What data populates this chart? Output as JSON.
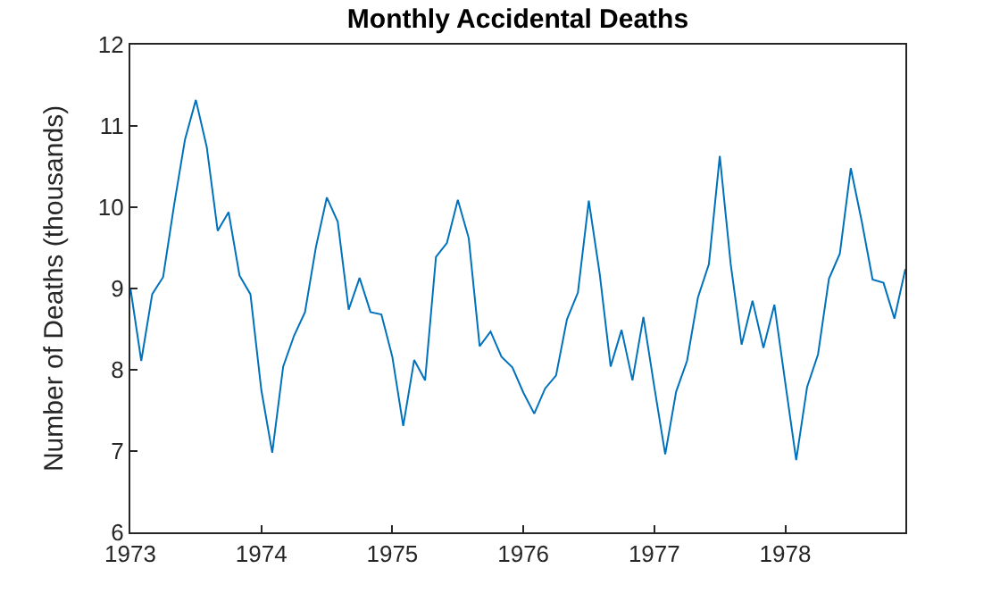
{
  "chart_data": {
    "type": "line",
    "title": "Monthly Accidental Deaths",
    "ylabel": "Number of Deaths (thousands)",
    "x": [
      1973,
      1973.0833,
      1973.1667,
      1973.25,
      1973.3333,
      1973.4167,
      1973.5,
      1973.5833,
      1973.6667,
      1973.75,
      1973.8333,
      1973.9167,
      1974,
      1974.0833,
      1974.1667,
      1974.25,
      1974.3333,
      1974.4167,
      1974.5,
      1974.5833,
      1974.6667,
      1974.75,
      1974.8333,
      1974.9167,
      1975,
      1975.0833,
      1975.1667,
      1975.25,
      1975.3333,
      1975.4167,
      1975.5,
      1975.5833,
      1975.6667,
      1975.75,
      1975.8333,
      1975.9167,
      1976,
      1976.0833,
      1976.1667,
      1976.25,
      1976.3333,
      1976.4167,
      1976.5,
      1976.5833,
      1976.6667,
      1976.75,
      1976.8333,
      1976.9167,
      1977,
      1977.0833,
      1977.1667,
      1977.25,
      1977.3333,
      1977.4167,
      1977.5,
      1977.5833,
      1977.6667,
      1977.75,
      1977.8333,
      1977.9167,
      1978,
      1978.0833,
      1978.1667,
      1978.25,
      1978.3333,
      1978.4167,
      1978.5,
      1978.5833,
      1978.6667,
      1978.75,
      1978.8333,
      1978.9167
    ],
    "series": [
      {
        "color": "#0072bd",
        "values": [
          9.01,
          8.11,
          8.93,
          9.14,
          10.02,
          10.83,
          11.32,
          10.74,
          9.71,
          9.94,
          9.16,
          8.93,
          7.75,
          6.98,
          8.04,
          8.42,
          8.71,
          9.51,
          10.12,
          9.82,
          8.74,
          9.13,
          8.71,
          8.68,
          8.16,
          7.31,
          8.12,
          7.87,
          9.39,
          9.56,
          10.09,
          9.62,
          8.29,
          8.47,
          8.16,
          8.03,
          7.72,
          7.46,
          7.77,
          7.93,
          8.62,
          8.95,
          10.08,
          9.18,
          8.04,
          8.49,
          7.87,
          8.65,
          7.79,
          6.96,
          7.73,
          8.11,
          8.89,
          9.3,
          10.63,
          9.3,
          8.31,
          8.85,
          8.27,
          8.8,
          7.84,
          6.89,
          7.79,
          8.19,
          9.12,
          9.43,
          10.48,
          9.83,
          9.11,
          9.07,
          8.63,
          9.24
        ]
      }
    ],
    "xlim": [
      1973,
      1978.9167
    ],
    "xticks": [
      1973,
      1974,
      1975,
      1976,
      1977,
      1978
    ],
    "ylim": [
      6,
      12
    ],
    "yticks": [
      6,
      7,
      8,
      9,
      10,
      11,
      12
    ],
    "grid": false,
    "marker": "none",
    "line_style": "solid"
  }
}
